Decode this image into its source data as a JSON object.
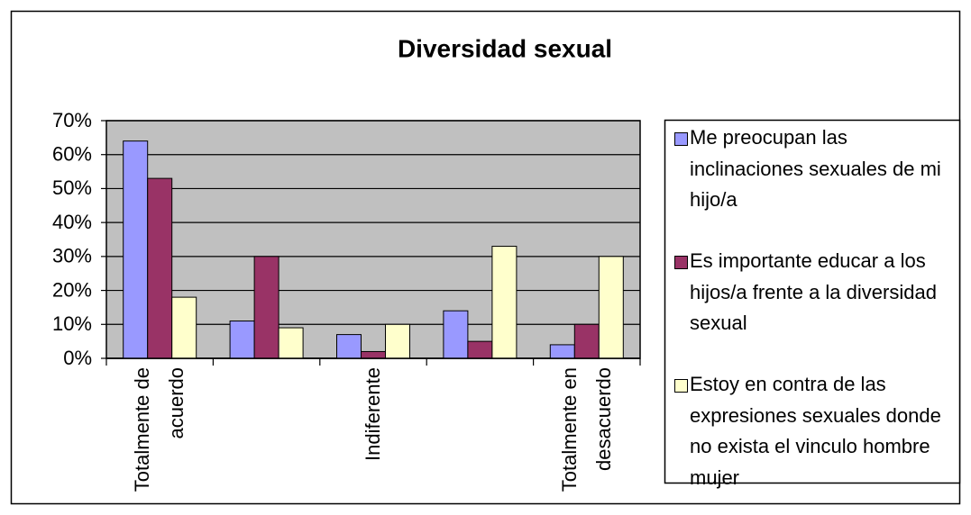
{
  "chart_data": {
    "type": "bar",
    "title": "Diversidad sexual",
    "categories": [
      "Totalmente de acuerdo",
      null,
      "Indiferente",
      null,
      "Totalmente en desacuerdo"
    ],
    "series": [
      {
        "name": "Me preocupan las inclinaciones sexuales de mi hijo/a",
        "color": "#9999ff",
        "values": [
          64,
          11,
          7,
          14,
          4
        ]
      },
      {
        "name": "Es importante educar a los hijos/a frente a la diversidad sexual",
        "color": "#993366",
        "values": [
          53,
          30,
          2,
          5,
          10
        ]
      },
      {
        "name": "Estoy en contra de las expresiones sexuales donde no exista el vinculo hombre mujer",
        "color": "#ffffcc",
        "values": [
          18,
          9,
          10,
          33,
          30
        ]
      }
    ],
    "ylim": [
      0,
      70
    ],
    "yticks": [
      {
        "value": 0,
        "label": "0%"
      },
      {
        "value": 10,
        "label": "10%"
      },
      {
        "value": 20,
        "label": "20%"
      },
      {
        "value": 30,
        "label": "30%"
      },
      {
        "value": 40,
        "label": "40%"
      },
      {
        "value": 50,
        "label": "50%"
      },
      {
        "value": 60,
        "label": "60%"
      },
      {
        "value": 70,
        "label": "70%"
      }
    ],
    "grid": true,
    "plot_background": "#c0c0c0",
    "legend": "right"
  }
}
